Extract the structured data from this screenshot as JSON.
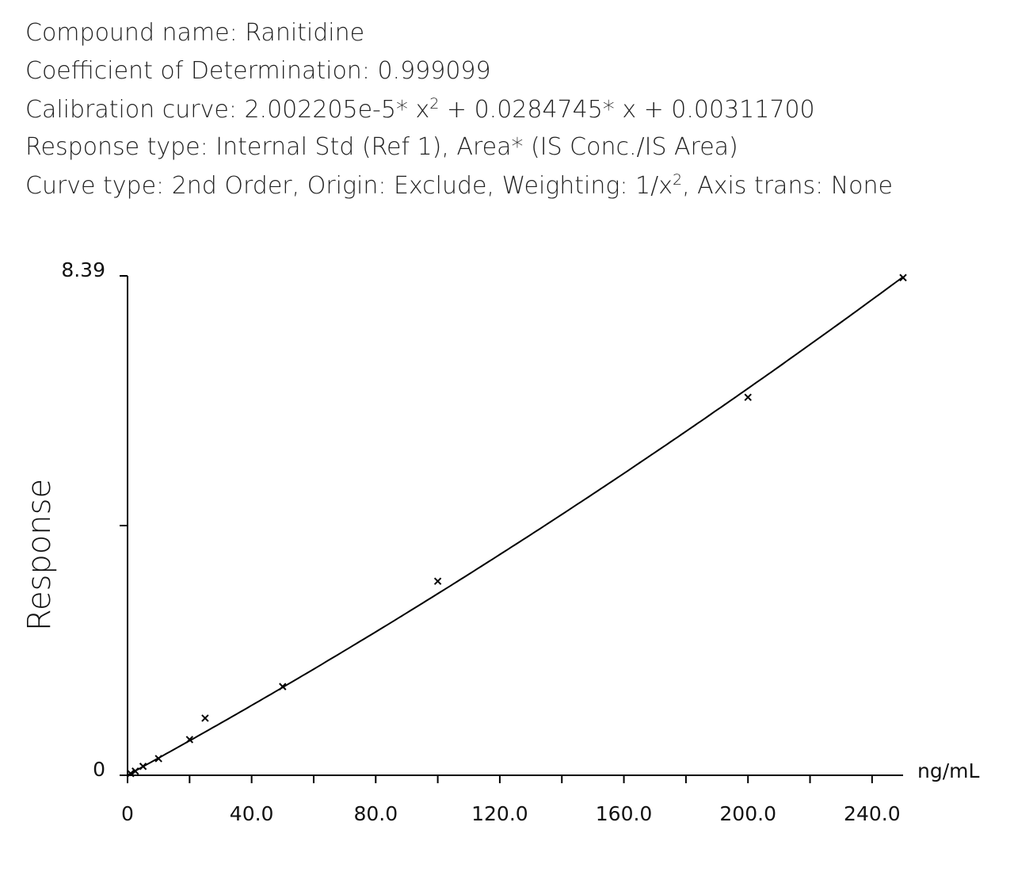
{
  "header": {
    "lines": [
      [
        {
          "text": "Compound name: Ranitidine"
        }
      ],
      [
        {
          "text": "Coefficient of Determination: 0.999099"
        }
      ],
      [
        {
          "text": "Calibration curve: 2.002205e-5* x"
        },
        {
          "text": "2",
          "sup": true
        },
        {
          "text": " + 0.0284745* x + 0.00311700"
        }
      ],
      [
        {
          "text": "Response type: Internal Std (Ref 1), Area* (IS Conc./IS Area)"
        }
      ],
      [
        {
          "text": "Curve type: 2nd Order, Origin: Exclude, Weighting: 1/x"
        },
        {
          "text": "2",
          "sup": true
        },
        {
          "text": ", Axis trans: None"
        }
      ]
    ]
  },
  "chart_data": {
    "type": "scatter",
    "x_label": "ng/mL",
    "y_label": "Response",
    "xlim": [
      0,
      250
    ],
    "ylim": [
      0,
      8.39
    ],
    "xticks": [
      0,
      {
        "value": 40,
        "label": "40.0"
      },
      {
        "value": 80,
        "label": "80.0"
      },
      {
        "value": 120,
        "label": "120.0"
      },
      {
        "value": 160,
        "label": "160.0"
      },
      {
        "value": 200,
        "label": "200.0"
      },
      {
        "value": 240,
        "label": "240.0"
      }
    ],
    "xminor": [
      20,
      60,
      100,
      140,
      180,
      220
    ],
    "yticks": [
      0,
      8.39
    ],
    "yminor": [
      4.195
    ],
    "color": "#000000",
    "x": [
      1,
      2.5,
      5,
      10,
      20,
      25,
      50,
      100,
      200,
      250
    ],
    "values": [
      0.03,
      0.07,
      0.15,
      0.28,
      0.6,
      0.96,
      1.49,
      3.26,
      6.35,
      8.36
    ],
    "curve": {
      "coefficients": [
        2.002205e-05,
        0.0284745,
        0.003117
      ],
      "xrange": [
        0,
        250
      ]
    }
  }
}
